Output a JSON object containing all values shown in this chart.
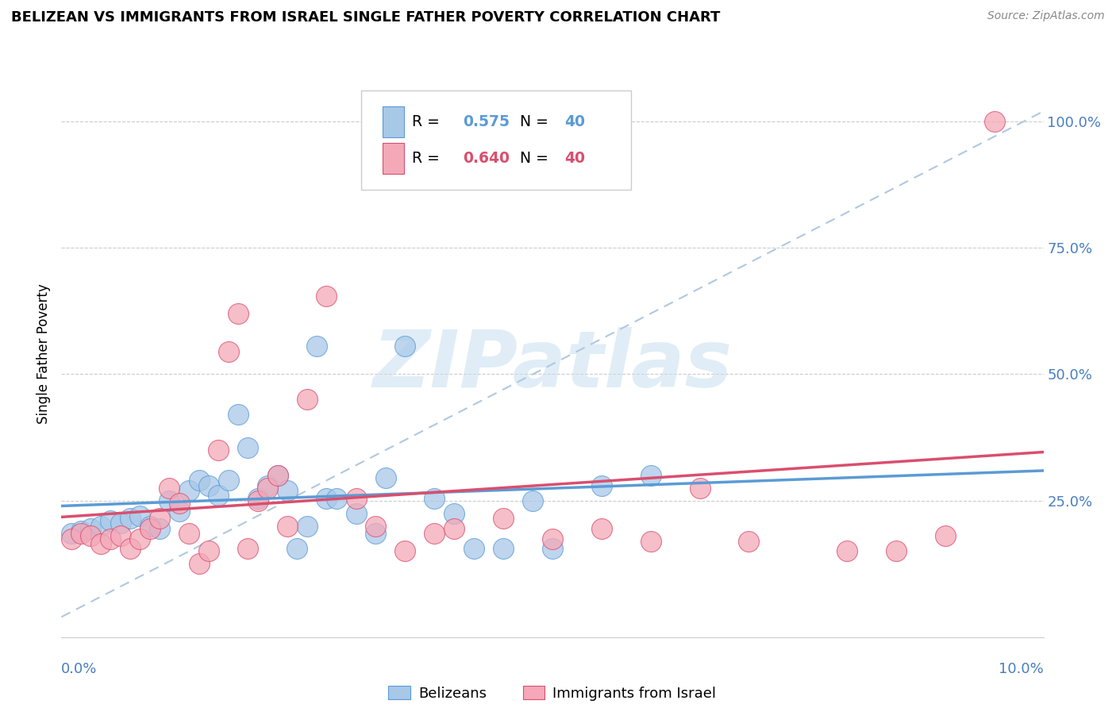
{
  "title": "BELIZEAN VS IMMIGRANTS FROM ISRAEL SINGLE FATHER POVERTY CORRELATION CHART",
  "source": "Source: ZipAtlas.com",
  "ylabel": "Single Father Poverty",
  "y_ticks": [
    0.0,
    0.25,
    0.5,
    0.75,
    1.0
  ],
  "y_tick_labels": [
    "",
    "25.0%",
    "50.0%",
    "75.0%",
    "100.0%"
  ],
  "legend_label_blue": "Belizeans",
  "legend_label_pink": "Immigrants from Israel",
  "blue_color": "#a8c8e8",
  "pink_color": "#f4a8b8",
  "blue_line_color": "#5b9bd5",
  "pink_line_color": "#d94f6e",
  "dashed_line_color": "#b0c8e0",
  "watermark": "ZIPatlas",
  "blue_r": "0.575",
  "pink_r": "0.640",
  "blue_n": "40",
  "pink_n": "40",
  "xlim_min": 0.0,
  "xlim_max": 0.1,
  "ylim_min": -0.02,
  "ylim_max": 1.1,
  "blue_scatter_x": [
    0.001,
    0.002,
    0.003,
    0.004,
    0.005,
    0.006,
    0.007,
    0.008,
    0.009,
    0.01,
    0.011,
    0.012,
    0.013,
    0.014,
    0.015,
    0.016,
    0.017,
    0.018,
    0.019,
    0.02,
    0.021,
    0.022,
    0.023,
    0.024,
    0.025,
    0.026,
    0.027,
    0.028,
    0.03,
    0.032,
    0.033,
    0.035,
    0.038,
    0.04,
    0.042,
    0.045,
    0.048,
    0.05,
    0.055,
    0.06
  ],
  "blue_scatter_y": [
    0.185,
    0.19,
    0.195,
    0.2,
    0.21,
    0.205,
    0.215,
    0.22,
    0.2,
    0.195,
    0.25,
    0.23,
    0.27,
    0.29,
    0.28,
    0.26,
    0.29,
    0.42,
    0.355,
    0.255,
    0.28,
    0.3,
    0.27,
    0.155,
    0.2,
    0.555,
    0.255,
    0.255,
    0.225,
    0.185,
    0.295,
    0.555,
    0.255,
    0.225,
    0.155,
    0.155,
    0.25,
    0.155,
    0.28,
    0.3
  ],
  "pink_scatter_x": [
    0.001,
    0.002,
    0.003,
    0.004,
    0.005,
    0.006,
    0.007,
    0.008,
    0.009,
    0.01,
    0.011,
    0.012,
    0.013,
    0.014,
    0.015,
    0.016,
    0.017,
    0.018,
    0.019,
    0.02,
    0.021,
    0.022,
    0.023,
    0.025,
    0.027,
    0.03,
    0.032,
    0.035,
    0.038,
    0.04,
    0.045,
    0.05,
    0.055,
    0.06,
    0.065,
    0.07,
    0.08,
    0.085,
    0.09,
    0.095
  ],
  "pink_scatter_y": [
    0.175,
    0.185,
    0.18,
    0.165,
    0.175,
    0.18,
    0.155,
    0.175,
    0.195,
    0.215,
    0.275,
    0.245,
    0.185,
    0.125,
    0.15,
    0.35,
    0.545,
    0.62,
    0.155,
    0.25,
    0.275,
    0.3,
    0.2,
    0.45,
    0.655,
    0.255,
    0.2,
    0.15,
    0.185,
    0.195,
    0.215,
    0.175,
    0.195,
    0.17,
    0.275,
    0.17,
    0.15,
    0.15,
    0.18,
    1.0
  ]
}
